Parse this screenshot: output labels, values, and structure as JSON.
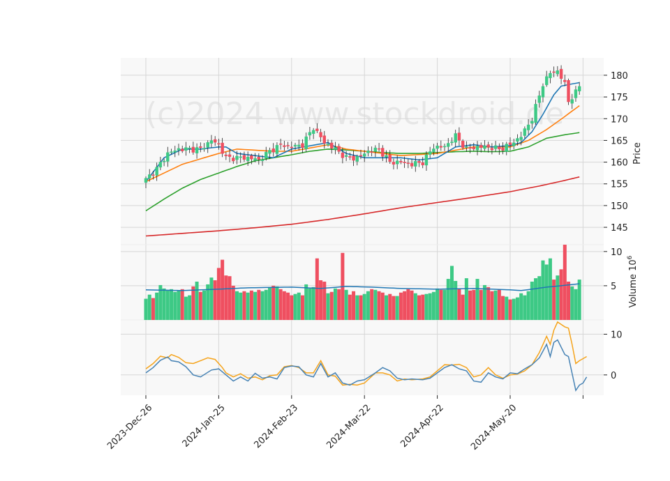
{
  "chart_data": {
    "type": "candlestick",
    "watermark": "(c)2024 www.stockdroid.de",
    "colors": {
      "up": "#3dc985",
      "down": "#ef4f60",
      "ma1": "#1f77b4",
      "ma2": "#ff7f0e",
      "ma3": "#2ca02c",
      "ma4": "#d62728",
      "vol_ma": "#1f77b4",
      "macd": "#4682b4",
      "signal": "#f5a31a",
      "panel_bg": "#f8f8f8",
      "grid": "#d6d6d6"
    },
    "x_tick_labels": [
      "2023-Dec-26",
      "2024-Jan-25",
      "2024-Feb-23",
      "2024-Mar-22",
      "2024-Apr-22",
      "2024-May-20"
    ],
    "x_tick_index": [
      0,
      20,
      40,
      60,
      80,
      100
    ],
    "price_panel": {
      "ylabel": "Price",
      "ylim": [
        141,
        184
      ],
      "yticks": [
        145,
        150,
        155,
        160,
        165,
        170,
        175,
        180
      ],
      "close_anchors": [
        [
          0,
          156
        ],
        [
          3,
          158.5
        ],
        [
          6,
          162
        ],
        [
          9,
          163
        ],
        [
          12,
          163
        ],
        [
          15,
          163
        ],
        [
          18,
          165
        ],
        [
          20,
          164
        ],
        [
          22,
          161
        ],
        [
          25,
          161
        ],
        [
          28,
          161
        ],
        [
          31,
          160.5
        ],
        [
          34,
          162.5
        ],
        [
          37,
          164
        ],
        [
          40,
          163.5
        ],
        [
          43,
          164
        ],
        [
          46,
          168
        ],
        [
          49,
          164.5
        ],
        [
          52,
          163
        ],
        [
          55,
          161
        ],
        [
          58,
          161
        ],
        [
          61,
          162.5
        ],
        [
          64,
          163
        ],
        [
          67,
          160
        ],
        [
          70,
          160
        ],
        [
          73,
          159.5
        ],
        [
          76,
          160
        ],
        [
          79,
          163.5
        ],
        [
          82,
          163.5
        ],
        [
          85,
          166
        ],
        [
          88,
          163
        ],
        [
          91,
          163.5
        ],
        [
          94,
          163.5
        ],
        [
          97,
          163
        ],
        [
          100,
          164
        ],
        [
          103,
          166
        ],
        [
          106,
          170
        ],
        [
          109,
          178
        ],
        [
          111,
          180.5
        ],
        [
          113,
          181
        ],
        [
          115,
          178
        ],
        [
          116,
          174
        ],
        [
          117,
          175
        ],
        [
          118,
          176
        ],
        [
          119,
          177.5
        ]
      ],
      "ma_anchors": {
        "ma1": [
          [
            0,
            155.5
          ],
          [
            5,
            161
          ],
          [
            10,
            163
          ],
          [
            15,
            163
          ],
          [
            20,
            163.5
          ],
          [
            22,
            163.5
          ],
          [
            25,
            162
          ],
          [
            35,
            161
          ],
          [
            40,
            163
          ],
          [
            50,
            164.5
          ],
          [
            55,
            162
          ],
          [
            60,
            161
          ],
          [
            70,
            161
          ],
          [
            75,
            160.5
          ],
          [
            80,
            161
          ],
          [
            85,
            163.5
          ],
          [
            90,
            164
          ],
          [
            95,
            163.5
          ],
          [
            100,
            163.8
          ],
          [
            103,
            164.5
          ],
          [
            106,
            167
          ],
          [
            109,
            171
          ],
          [
            112,
            175.5
          ],
          [
            114,
            177.5
          ],
          [
            117,
            178
          ],
          [
            119,
            178.3
          ]
        ],
        "ma2": [
          [
            0,
            155.5
          ],
          [
            10,
            159.5
          ],
          [
            20,
            162
          ],
          [
            25,
            163
          ],
          [
            35,
            162.5
          ],
          [
            40,
            162.5
          ],
          [
            50,
            164
          ],
          [
            55,
            163
          ],
          [
            60,
            162.5
          ],
          [
            70,
            161.5
          ],
          [
            80,
            162
          ],
          [
            90,
            163.5
          ],
          [
            100,
            163.5
          ],
          [
            105,
            165
          ],
          [
            110,
            167.5
          ],
          [
            115,
            170.5
          ],
          [
            119,
            173
          ]
        ],
        "ma3": [
          [
            0,
            148.8
          ],
          [
            5,
            151.5
          ],
          [
            10,
            154
          ],
          [
            15,
            156
          ],
          [
            20,
            157.5
          ],
          [
            25,
            159
          ],
          [
            30,
            160.3
          ],
          [
            35,
            161
          ],
          [
            40,
            161.7
          ],
          [
            45,
            162.5
          ],
          [
            50,
            163
          ],
          [
            55,
            162.8
          ],
          [
            60,
            162.5
          ],
          [
            65,
            162.2
          ],
          [
            70,
            162
          ],
          [
            75,
            162
          ],
          [
            80,
            162.2
          ],
          [
            85,
            162.4
          ],
          [
            90,
            162.5
          ],
          [
            95,
            162.4
          ],
          [
            100,
            162.5
          ],
          [
            105,
            163.5
          ],
          [
            110,
            165.5
          ],
          [
            115,
            166.3
          ],
          [
            119,
            166.8
          ]
        ],
        "ma4": [
          [
            0,
            143
          ],
          [
            10,
            143.6
          ],
          [
            20,
            144.2
          ],
          [
            30,
            144.9
          ],
          [
            40,
            145.7
          ],
          [
            50,
            146.8
          ],
          [
            60,
            148.1
          ],
          [
            70,
            149.5
          ],
          [
            80,
            150.7
          ],
          [
            90,
            151.9
          ],
          [
            100,
            153.2
          ],
          [
            108,
            154.5
          ],
          [
            114,
            155.6
          ],
          [
            119,
            156.6
          ]
        ]
      }
    },
    "volume_panel": {
      "ylabel": "Volume  $10^6$",
      "ylim": [
        0,
        11
      ],
      "yticks": [
        5,
        10
      ],
      "values": [
        3.1,
        3.7,
        3.2,
        4.0,
        5.1,
        4.6,
        4.4,
        4.5,
        4.1,
        4.3,
        4.5,
        3.4,
        3.6,
        4.9,
        5.6,
        4.1,
        4.3,
        5.2,
        6.2,
        5.8,
        7.6,
        8.8,
        6.5,
        6.4,
        5.0,
        4.2,
        4.0,
        4.2,
        4.0,
        4.3,
        4.1,
        4.4,
        4.2,
        4.4,
        4.8,
        5.0,
        4.9,
        4.5,
        4.2,
        4.0,
        3.6,
        3.8,
        4.0,
        3.6,
        5.2,
        4.6,
        4.8,
        9.0,
        5.8,
        5.6,
        3.9,
        4.1,
        4.6,
        4.5,
        9.8,
        4.4,
        3.7,
        4.2,
        3.6,
        3.6,
        3.8,
        4.2,
        4.5,
        4.4,
        4.2,
        4.0,
        3.6,
        3.8,
        3.5,
        3.5,
        4.0,
        4.2,
        4.5,
        4.3,
        3.9,
        3.6,
        3.7,
        3.8,
        3.9,
        4.1,
        4.6,
        4.4,
        4.4,
        6.0,
        7.9,
        5.7,
        4.6,
        3.7,
        6.1,
        4.3,
        4.4,
        6.0,
        4.4,
        5.1,
        4.8,
        4.2,
        4.3,
        4.4,
        3.5,
        3.4,
        3.0,
        3.1,
        3.3,
        3.9,
        3.6,
        4.2,
        5.6,
        6.1,
        6.4,
        8.7,
        8.1,
        9.0,
        5.9,
        6.5,
        7.4,
        11.0,
        5.6,
        4.9,
        4.5,
        5.9
      ],
      "ma": [
        [
          0,
          4.4
        ],
        [
          10,
          4.3
        ],
        [
          20,
          4.5
        ],
        [
          28,
          4.7
        ],
        [
          40,
          4.8
        ],
        [
          48,
          4.6
        ],
        [
          55,
          4.9
        ],
        [
          62,
          4.8
        ],
        [
          70,
          4.6
        ],
        [
          80,
          4.5
        ],
        [
          90,
          4.6
        ],
        [
          95,
          4.5
        ],
        [
          100,
          4.4
        ],
        [
          103,
          4.3
        ],
        [
          106,
          4.5
        ],
        [
          110,
          4.8
        ],
        [
          114,
          5.0
        ],
        [
          119,
          5.3
        ]
      ]
    },
    "macd_panel": {
      "ylim": [
        -5,
        13.5
      ],
      "yticks": [
        0,
        10
      ],
      "macd": [
        [
          0,
          0.5
        ],
        [
          2,
          1.8
        ],
        [
          4,
          3.6
        ],
        [
          6,
          4.4
        ],
        [
          7,
          3.5
        ],
        [
          9,
          3.2
        ],
        [
          11,
          2.0
        ],
        [
          13,
          0
        ],
        [
          15,
          -0.5
        ],
        [
          18,
          1.2
        ],
        [
          20,
          1.5
        ],
        [
          22,
          0
        ],
        [
          24,
          -1.5
        ],
        [
          26,
          -0.5
        ],
        [
          28,
          -1.5
        ],
        [
          30,
          0.4
        ],
        [
          32,
          -0.8
        ],
        [
          34,
          -0.5
        ],
        [
          36,
          -1.0
        ],
        [
          38,
          1.8
        ],
        [
          40,
          2.2
        ],
        [
          42,
          2.0
        ],
        [
          44,
          0
        ],
        [
          46,
          -0.5
        ],
        [
          48,
          2.8
        ],
        [
          50,
          -0.5
        ],
        [
          52,
          0.5
        ],
        [
          54,
          -2.0
        ],
        [
          56,
          -2.5
        ],
        [
          58,
          -1.5
        ],
        [
          60,
          -1.2
        ],
        [
          63,
          0.5
        ],
        [
          65,
          1.8
        ],
        [
          67,
          1.0
        ],
        [
          69,
          -0.8
        ],
        [
          71,
          -1.2
        ],
        [
          73,
          -1.0
        ],
        [
          76,
          -1.2
        ],
        [
          78,
          -0.8
        ],
        [
          80,
          0.5
        ],
        [
          82,
          1.8
        ],
        [
          84,
          2.5
        ],
        [
          86,
          1.5
        ],
        [
          88,
          1.0
        ],
        [
          90,
          -1.5
        ],
        [
          92,
          -1.8
        ],
        [
          94,
          0.5
        ],
        [
          96,
          -0.5
        ],
        [
          98,
          -1.0
        ],
        [
          100,
          0.5
        ],
        [
          102,
          0.3
        ],
        [
          104,
          1.5
        ],
        [
          106,
          2.5
        ],
        [
          108,
          4.2
        ],
        [
          110,
          7.5
        ],
        [
          111,
          4.5
        ],
        [
          112,
          8.0
        ],
        [
          113,
          8.6
        ],
        [
          115,
          5.0
        ],
        [
          116,
          4.5
        ],
        [
          118,
          -3.8
        ],
        [
          119,
          -2.5
        ],
        [
          120,
          -2.0
        ],
        [
          121,
          -0.5
        ]
      ],
      "signal": [
        [
          0,
          1.5
        ],
        [
          2,
          2.8
        ],
        [
          4,
          4.6
        ],
        [
          6,
          4.2
        ],
        [
          7,
          5.0
        ],
        [
          9,
          4.3
        ],
        [
          11,
          3.0
        ],
        [
          13,
          2.8
        ],
        [
          15,
          3.5
        ],
        [
          17,
          4.2
        ],
        [
          19,
          3.8
        ],
        [
          21,
          1.8
        ],
        [
          22,
          0.5
        ],
        [
          24,
          -0.5
        ],
        [
          26,
          0.3
        ],
        [
          28,
          -0.8
        ],
        [
          30,
          -0.5
        ],
        [
          32,
          -1.2
        ],
        [
          34,
          -0.2
        ],
        [
          36,
          0
        ],
        [
          38,
          2.0
        ],
        [
          40,
          2.3
        ],
        [
          42,
          1.8
        ],
        [
          44,
          0.5
        ],
        [
          46,
          0.5
        ],
        [
          48,
          3.5
        ],
        [
          50,
          0
        ],
        [
          52,
          -0.3
        ],
        [
          54,
          -2.5
        ],
        [
          56,
          -2.3
        ],
        [
          58,
          -2.5
        ],
        [
          60,
          -2.0
        ],
        [
          63,
          0.5
        ],
        [
          65,
          0.5
        ],
        [
          67,
          0
        ],
        [
          69,
          -1.5
        ],
        [
          71,
          -1.0
        ],
        [
          73,
          -1.2
        ],
        [
          76,
          -1.0
        ],
        [
          78,
          -0.5
        ],
        [
          80,
          1.0
        ],
        [
          82,
          2.5
        ],
        [
          84,
          2.4
        ],
        [
          86,
          2.6
        ],
        [
          88,
          1.8
        ],
        [
          90,
          -0.5
        ],
        [
          92,
          0
        ],
        [
          94,
          1.8
        ],
        [
          96,
          0
        ],
        [
          98,
          -0.8
        ],
        [
          100,
          0
        ],
        [
          102,
          0.2
        ],
        [
          104,
          1.0
        ],
        [
          106,
          2.5
        ],
        [
          108,
          5.5
        ],
        [
          110,
          9.5
        ],
        [
          111,
          7.5
        ],
        [
          112,
          11.0
        ],
        [
          113,
          13.0
        ],
        [
          115,
          11.8
        ],
        [
          116,
          11.5
        ],
        [
          117,
          7.5
        ],
        [
          118,
          2.8
        ],
        [
          119,
          3.5
        ],
        [
          120,
          4.0
        ],
        [
          121,
          4.5
        ]
      ]
    }
  }
}
